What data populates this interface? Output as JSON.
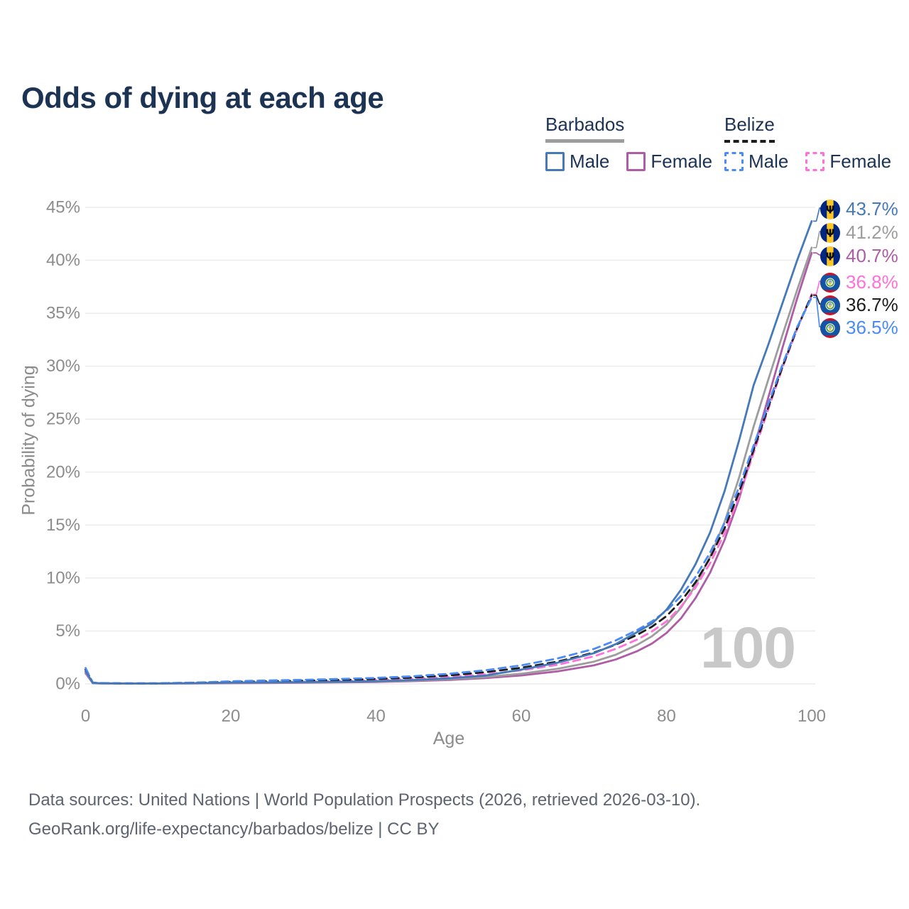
{
  "header": {
    "title": "Odds of dying at each age"
  },
  "legend": {
    "groups": [
      {
        "name": "Barbados",
        "line_style": "solid",
        "items": [
          {
            "label": "Male",
            "color_key": "barbados_male",
            "style": "solid"
          },
          {
            "label": "Female",
            "color_key": "barbados_female",
            "style": "solid"
          }
        ]
      },
      {
        "name": "Belize",
        "line_style": "dashed",
        "items": [
          {
            "label": "Male",
            "color_key": "belize_male",
            "style": "dashed"
          },
          {
            "label": "Female",
            "color_key": "belize_female",
            "style": "dashed"
          }
        ]
      }
    ]
  },
  "colors": {
    "barbados_male": "#4579b8",
    "barbados_total": "#9d9d9d",
    "barbados_female": "#ad5ca5",
    "belize_male": "#4b8bf5",
    "belize_total": "#1c1c1c",
    "belize_female": "#ff70d8",
    "title_text": "#1c3354",
    "legend_text": "#1c3354",
    "axis_text": "#8c8c8c",
    "footer_text": "#5d6470",
    "grid": "#ececec",
    "watermark": "#c8c8c8",
    "flag_barbados_blue": "#00267F",
    "flag_barbados_gold": "#FFC726",
    "flag_belize_blue": "#1553a4",
    "flag_belize_red": "#CE1126"
  },
  "chart_data": {
    "type": "line",
    "title": "Odds of dying at each age",
    "x_axis_label": "Age",
    "y_axis_label": "Probability of dying",
    "x_ticks": [
      "0",
      "20",
      "40",
      "60",
      "80",
      "100"
    ],
    "y_ticks": [
      "0%",
      "5%",
      "10%",
      "15%",
      "20%",
      "25%",
      "30%",
      "35%",
      "40%",
      "45%"
    ],
    "xlim": [
      0,
      100
    ],
    "ylim": [
      0,
      45
    ],
    "grid": "horizontal-only",
    "legend_position": "top-right",
    "watermark": "100",
    "ages": [
      0,
      1,
      2,
      5,
      10,
      15,
      20,
      25,
      30,
      35,
      40,
      45,
      50,
      55,
      60,
      65,
      70,
      73,
      76,
      78,
      80,
      82,
      84,
      86,
      88,
      90,
      92,
      94,
      96,
      98,
      100
    ],
    "series": [
      {
        "name": "Barbados Female",
        "color_key": "barbados_female",
        "dash": false,
        "end_label": "40.7%",
        "values": [
          1.0,
          0.07,
          0.045,
          0.03,
          0.03,
          0.05,
          0.07,
          0.09,
          0.11,
          0.14,
          0.18,
          0.26,
          0.37,
          0.54,
          0.8,
          1.18,
          1.75,
          2.3,
          3.1,
          3.8,
          4.8,
          6.2,
          8.1,
          10.5,
          13.6,
          17.5,
          22.2,
          27.0,
          31.8,
          36.4,
          40.7
        ]
      },
      {
        "name": "Barbados Both sexes",
        "color_key": "barbados_total",
        "dash": false,
        "end_label": "41.2%",
        "values": [
          1.1,
          0.08,
          0.05,
          0.035,
          0.035,
          0.06,
          0.1,
          0.12,
          0.14,
          0.17,
          0.22,
          0.31,
          0.44,
          0.65,
          0.96,
          1.42,
          2.1,
          2.75,
          3.7,
          4.5,
          5.6,
          7.2,
          9.3,
          12.0,
          15.3,
          19.5,
          24.3,
          28.7,
          33.0,
          37.2,
          41.2
        ]
      },
      {
        "name": "Belize Female",
        "color_key": "belize_female",
        "dash": true,
        "end_label": "36.8%",
        "values": [
          1.15,
          0.09,
          0.06,
          0.04,
          0.04,
          0.07,
          0.12,
          0.16,
          0.21,
          0.27,
          0.35,
          0.47,
          0.64,
          0.9,
          1.28,
          1.8,
          2.6,
          3.3,
          4.2,
          4.95,
          5.9,
          7.3,
          9.1,
          11.4,
          14.2,
          17.7,
          21.8,
          25.9,
          29.9,
          33.5,
          36.8
        ]
      },
      {
        "name": "Belize Both sexes",
        "color_key": "belize_total",
        "dash": true,
        "end_label": "36.7%",
        "values": [
          1.35,
          0.1,
          0.07,
          0.05,
          0.05,
          0.1,
          0.19,
          0.25,
          0.3,
          0.37,
          0.46,
          0.6,
          0.8,
          1.1,
          1.52,
          2.1,
          2.95,
          3.7,
          4.65,
          5.4,
          6.4,
          7.8,
          9.6,
          11.9,
          14.7,
          18.1,
          22.1,
          26.1,
          30.0,
          33.6,
          36.7
        ]
      },
      {
        "name": "Belize Male",
        "color_key": "belize_male",
        "dash": true,
        "end_label": "36.5%",
        "values": [
          1.5,
          0.12,
          0.08,
          0.06,
          0.06,
          0.12,
          0.24,
          0.32,
          0.38,
          0.46,
          0.56,
          0.72,
          0.95,
          1.28,
          1.75,
          2.4,
          3.3,
          4.1,
          5.1,
          5.9,
          6.9,
          8.3,
          10.1,
          12.4,
          15.2,
          18.6,
          22.5,
          26.4,
          30.2,
          33.7,
          36.5
        ]
      },
      {
        "name": "Barbados Male",
        "color_key": "barbados_male",
        "dash": false,
        "end_label": "43.7%",
        "values": [
          1.2,
          0.09,
          0.06,
          0.04,
          0.04,
          0.07,
          0.12,
          0.15,
          0.17,
          0.2,
          0.26,
          0.36,
          0.52,
          0.78,
          1.35,
          2.0,
          2.9,
          3.75,
          4.9,
          5.7,
          7.0,
          8.9,
          11.3,
          14.3,
          18.2,
          23.0,
          28.2,
          32.0,
          36.0,
          40.0,
          43.7
        ]
      }
    ],
    "end_labels": [
      {
        "text": "43.7%",
        "value": 43.7,
        "flag": "barbados",
        "color_key": "barbados_male",
        "series": "Barbados Male"
      },
      {
        "text": "41.2%",
        "value": 41.2,
        "flag": "barbados",
        "color_key": "barbados_total",
        "series": "Barbados Both sexes"
      },
      {
        "text": "40.7%",
        "value": 40.7,
        "flag": "barbados",
        "color_key": "barbados_female",
        "series": "Barbados Female"
      },
      {
        "text": "36.8%",
        "value": 36.8,
        "flag": "belize",
        "color_key": "belize_female",
        "series": "Belize Female"
      },
      {
        "text": "36.7%",
        "value": 36.7,
        "flag": "belize",
        "color_key": "belize_total",
        "series": "Belize Both sexes"
      },
      {
        "text": "36.5%",
        "value": 36.5,
        "flag": "belize",
        "color_key": "belize_male",
        "series": "Belize Male"
      }
    ]
  },
  "footer": {
    "line1": "Data sources: United Nations | World Population Prospects (2026, retrieved 2026-03-10).",
    "line2": "GeoRank.org/life-expectancy/barbados/belize | CC BY"
  }
}
